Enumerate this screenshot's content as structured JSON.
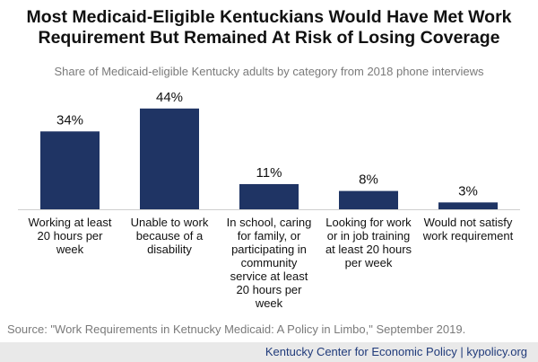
{
  "chart_data": {
    "type": "bar",
    "title_lines": [
      "Most Medicaid-Eligible Kentuckians Would Have Met Work",
      "Requirement But Remained At Risk of Losing Coverage"
    ],
    "subtitle": "Share of Medicaid-eligible Kentucky adults by category from 2018 phone interviews",
    "categories": [
      [
        "Working at least",
        "20 hours per",
        "week"
      ],
      [
        "Unable to work",
        "because of a",
        "disability"
      ],
      [
        "In school, caring",
        "for family, or",
        "participating in",
        "community",
        "service at least",
        "20 hours per",
        "week"
      ],
      [
        "Looking for work",
        "or in job training",
        "at least 20 hours",
        "per week"
      ],
      [
        "Would not satisfy",
        "work requirement"
      ]
    ],
    "values": [
      34,
      44,
      11,
      8,
      3
    ],
    "data_labels": [
      "34%",
      "44%",
      "11%",
      "8%",
      "3%"
    ],
    "ylim": [
      0,
      50
    ],
    "grid": false,
    "bar_color": "#1f3464"
  },
  "source": "Source: \"Work Requirements in Ketnucky Medicaid: A Policy in Limbo,\" September 2019.",
  "footer": "Kentucky Center for Economic Policy | kypolicy.org"
}
